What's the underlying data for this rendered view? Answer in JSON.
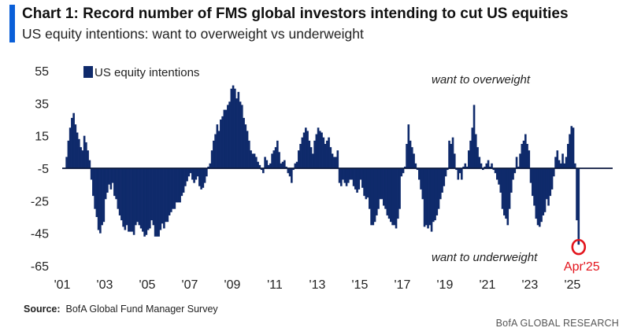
{
  "header": {
    "title": "Chart 1: Record number of FMS global investors intending to cut US equities",
    "subtitle": "US equity intentions: want to overweight vs underweight"
  },
  "footer": {
    "source_label": "Source:",
    "source_text": "BofA Global Fund Manager Survey",
    "brand": "BofA GLOBAL RESEARCH"
  },
  "colors": {
    "bar": "#0f2a6b",
    "accent": "#0a5fd8",
    "highlight": "#e3141c"
  },
  "chart_data": {
    "type": "bar",
    "title": "Chart 1: Record number of FMS global investors intending to cut US equities",
    "subtitle": "US equity intentions: want to overweight vs underweight",
    "legend": {
      "label": "US equity intentions",
      "position": "top-left"
    },
    "ylim": [
      -65,
      55
    ],
    "yticks": [
      55,
      35,
      15,
      -5,
      -25,
      -45,
      -65
    ],
    "xlim": [
      2001,
      2026.3
    ],
    "xticks": [
      {
        "label": "'01",
        "x": 2001
      },
      {
        "label": "'03",
        "x": 2003
      },
      {
        "label": "'05",
        "x": 2005
      },
      {
        "label": "'07",
        "x": 2007
      },
      {
        "label": "'09",
        "x": 2009
      },
      {
        "label": "'11",
        "x": 2011
      },
      {
        "label": "'13",
        "x": 2013
      },
      {
        "label": "'15",
        "x": 2015
      },
      {
        "label": "'17",
        "x": 2017
      },
      {
        "label": "'19",
        "x": 2019
      },
      {
        "label": "'21",
        "x": 2021
      },
      {
        "label": "'23",
        "x": 2023
      },
      {
        "label": "'25",
        "x": 2025
      }
    ],
    "grid": false,
    "annotations": {
      "overweight": "want to overweight",
      "underweight": "want to underweight",
      "highlight_label": "Apr'25"
    },
    "series": [
      {
        "name": "US equity intentions",
        "x": [
          2001.125,
          2001.208,
          2001.292,
          2001.375,
          2001.458,
          2001.542,
          2001.625,
          2001.708,
          2001.792,
          2001.875,
          2001.958,
          2002.042,
          2002.125,
          2002.208,
          2002.292,
          2002.375,
          2002.458,
          2002.542,
          2002.625,
          2002.708,
          2002.792,
          2002.875,
          2002.958,
          2003.042,
          2003.125,
          2003.208,
          2003.292,
          2003.375,
          2003.458,
          2003.542,
          2003.625,
          2003.708,
          2003.792,
          2003.875,
          2003.958,
          2004.042,
          2004.125,
          2004.208,
          2004.292,
          2004.375,
          2004.458,
          2004.542,
          2004.625,
          2004.708,
          2004.792,
          2004.875,
          2004.958,
          2005.042,
          2005.125,
          2005.208,
          2005.292,
          2005.375,
          2005.458,
          2005.542,
          2005.625,
          2005.708,
          2005.792,
          2005.875,
          2005.958,
          2006.042,
          2006.125,
          2006.208,
          2006.292,
          2006.375,
          2006.458,
          2006.542,
          2006.625,
          2006.708,
          2006.792,
          2006.875,
          2006.958,
          2007.042,
          2007.125,
          2007.208,
          2007.292,
          2007.375,
          2007.458,
          2007.542,
          2007.625,
          2007.708,
          2007.792,
          2007.875,
          2007.958,
          2008.042,
          2008.125,
          2008.208,
          2008.292,
          2008.375,
          2008.458,
          2008.542,
          2008.625,
          2008.708,
          2008.792,
          2008.875,
          2008.958,
          2009.042,
          2009.125,
          2009.208,
          2009.292,
          2009.375,
          2009.458,
          2009.542,
          2009.625,
          2009.708,
          2009.792,
          2009.875,
          2009.958,
          2010.042,
          2010.125,
          2010.208,
          2010.292,
          2010.375,
          2010.458,
          2010.542,
          2010.625,
          2010.708,
          2010.792,
          2010.875,
          2010.958,
          2011.042,
          2011.125,
          2011.208,
          2011.292,
          2011.375,
          2011.458,
          2011.542,
          2011.625,
          2011.708,
          2011.792,
          2011.875,
          2011.958,
          2012.042,
          2012.125,
          2012.208,
          2012.292,
          2012.375,
          2012.458,
          2012.542,
          2012.625,
          2012.708,
          2012.792,
          2012.875,
          2012.958,
          2013.042,
          2013.125,
          2013.208,
          2013.292,
          2013.375,
          2013.458,
          2013.542,
          2013.625,
          2013.708,
          2013.792,
          2013.875,
          2013.958,
          2014.042,
          2014.125,
          2014.208,
          2014.292,
          2014.375,
          2014.458,
          2014.542,
          2014.625,
          2014.708,
          2014.792,
          2014.875,
          2014.958,
          2015.042,
          2015.125,
          2015.208,
          2015.292,
          2015.375,
          2015.458,
          2015.542,
          2015.625,
          2015.708,
          2015.792,
          2015.875,
          2015.958,
          2016.042,
          2016.125,
          2016.208,
          2016.292,
          2016.375,
          2016.458,
          2016.542,
          2016.625,
          2016.708,
          2016.792,
          2016.875,
          2016.958,
          2017.042,
          2017.125,
          2017.208,
          2017.292,
          2017.375,
          2017.458,
          2017.542,
          2017.625,
          2017.708,
          2017.792,
          2017.875,
          2017.958,
          2018.042,
          2018.125,
          2018.208,
          2018.292,
          2018.375,
          2018.458,
          2018.542,
          2018.625,
          2018.708,
          2018.792,
          2018.875,
          2018.958,
          2019.042,
          2019.125,
          2019.208,
          2019.292,
          2019.375,
          2019.458,
          2019.542,
          2019.625,
          2019.708,
          2019.792,
          2019.875,
          2019.958,
          2020.042,
          2020.125,
          2020.208,
          2020.292,
          2020.375,
          2020.458,
          2020.542,
          2020.625,
          2020.708,
          2020.792,
          2020.875,
          2020.958,
          2021.042,
          2021.125,
          2021.208,
          2021.292,
          2021.375,
          2021.458,
          2021.542,
          2021.625,
          2021.708,
          2021.792,
          2021.875,
          2021.958,
          2022.042,
          2022.125,
          2022.208,
          2022.292,
          2022.375,
          2022.458,
          2022.542,
          2022.625,
          2022.708,
          2022.792,
          2022.875,
          2022.958,
          2023.042,
          2023.125,
          2023.208,
          2023.292,
          2023.375,
          2023.458,
          2023.542,
          2023.625,
          2023.708,
          2023.792,
          2023.875,
          2023.958,
          2024.042,
          2024.125,
          2024.208,
          2024.292,
          2024.375,
          2024.458,
          2024.542,
          2024.625,
          2024.708,
          2024.792,
          2024.875,
          2024.958,
          2025.042,
          2025.125,
          2025.208,
          2025.292
        ],
        "values": [
          -5,
          2,
          12,
          20,
          26,
          29,
          22,
          17,
          13,
          8,
          6,
          15,
          11,
          6,
          0,
          -12,
          -22,
          -30,
          -35,
          -43,
          -45,
          -40,
          -38,
          -24,
          -20,
          -15,
          -18,
          -14,
          -22,
          -24,
          -30,
          -34,
          -37,
          -41,
          -43,
          -40,
          -44,
          -44,
          -44,
          -46,
          -40,
          -38,
          -40,
          -42,
          -44,
          -47,
          -46,
          -43,
          -42,
          -37,
          -40,
          -47,
          -47,
          -47,
          -43,
          -39,
          -42,
          -38,
          -38,
          -34,
          -32,
          -30,
          -30,
          -26,
          -26,
          -26,
          -22,
          -20,
          -16,
          -13,
          -10,
          -8,
          -12,
          -14,
          -12,
          -10,
          -16,
          -18,
          -17,
          -14,
          -10,
          -4,
          -2,
          6,
          12,
          16,
          22,
          18,
          25,
          27,
          31,
          31,
          34,
          36,
          44,
          46,
          44,
          38,
          42,
          36,
          34,
          26,
          22,
          18,
          12,
          6,
          4,
          4,
          2,
          -1,
          -3,
          -6,
          -8,
          2,
          0,
          -3,
          -2,
          4,
          6,
          8,
          12,
          5,
          -2,
          -1,
          0,
          -4,
          -8,
          -10,
          -14,
          -6,
          -2,
          -1,
          6,
          10,
          14,
          17,
          20,
          18,
          12,
          8,
          4,
          12,
          16,
          20,
          18,
          17,
          14,
          10,
          12,
          14,
          8,
          4,
          2,
          2,
          6,
          -14,
          -16,
          -12,
          -14,
          -16,
          -14,
          -12,
          -12,
          -16,
          -18,
          -20,
          -18,
          -12,
          -17,
          -22,
          -24,
          -23,
          -30,
          -40,
          -40,
          -38,
          -34,
          -30,
          -24,
          -24,
          -28,
          -30,
          -34,
          -36,
          -38,
          -40,
          -40,
          -42,
          -36,
          -30,
          -10,
          -8,
          -4,
          10,
          22,
          12,
          8,
          4,
          -2,
          -6,
          -12,
          -18,
          -24,
          -41,
          -40,
          -42,
          -40,
          -44,
          -38,
          -37,
          -34,
          -30,
          -24,
          -20,
          -16,
          -10,
          -6,
          12,
          10,
          14,
          4,
          -6,
          -12,
          -8,
          -12,
          -4,
          -2,
          -4,
          6,
          12,
          20,
          34,
          16,
          8,
          2,
          -2,
          -6,
          -4,
          -2,
          0,
          -4,
          -2,
          -6,
          -8,
          -12,
          -15,
          -20,
          -30,
          -34,
          -36,
          -40,
          -30,
          -20,
          -12,
          -8,
          2,
          -4,
          4,
          10,
          12,
          16,
          10,
          6,
          -14,
          -22,
          -28,
          -36,
          -40,
          -41,
          -38,
          -34,
          -32,
          -24,
          -28,
          -22,
          -18,
          -10,
          2,
          6,
          0,
          -2,
          4,
          -2,
          2,
          10,
          16,
          21,
          20,
          -2,
          -37,
          -52
        ]
      }
    ]
  }
}
